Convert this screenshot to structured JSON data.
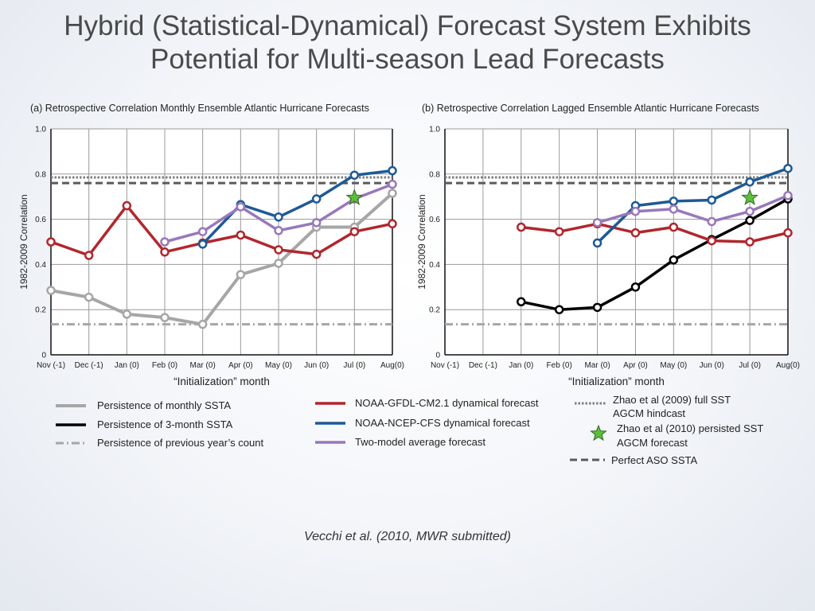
{
  "title": {
    "line1": "Hybrid (Statistical-Dynamical) Forecast System Exhibits",
    "line2": "Potential for Multi-season Lead Forecasts"
  },
  "citation": "Vecchi et al. (2010, MWR submitted)",
  "chart_data": [
    {
      "type": "line",
      "title": "(a) Retrospective Correlation Monthly Ensemble Atlantic Hurricane Forecasts",
      "xlabel": "“Initialization” month",
      "ylabel": "1982-2009  Correlation",
      "categories": [
        "Nov (-1)",
        "Dec (-1)",
        "Jan (0)",
        "Feb (0)",
        "Mar (0)",
        "Apr (0)",
        "May (0)",
        "Jun (0)",
        "Jul (0)",
        "Aug(0)"
      ],
      "ylim": [
        0,
        1.0
      ],
      "yticks": [
        "0",
        "0.2",
        "0.4",
        "0.6",
        "0.8",
        "1.0"
      ],
      "grid": true,
      "series": [
        {
          "key": "ssta_monthly",
          "values": [
            0.285,
            0.255,
            0.18,
            0.165,
            0.135,
            0.355,
            0.405,
            0.565,
            0.565,
            0.715
          ]
        },
        {
          "key": "gfdl",
          "values": [
            0.5,
            0.44,
            0.66,
            0.455,
            0.495,
            0.53,
            0.465,
            0.445,
            0.545,
            0.58
          ]
        },
        {
          "key": "ncep",
          "values": [
            null,
            null,
            null,
            null,
            0.49,
            0.665,
            0.61,
            0.69,
            0.795,
            0.815
          ]
        },
        {
          "key": "avg",
          "values": [
            null,
            null,
            null,
            0.5,
            0.545,
            0.655,
            0.55,
            0.585,
            0.69,
            0.755
          ]
        }
      ],
      "reference_lines": {
        "zhao2009": 0.785,
        "perfect_aso": 0.76,
        "prev_year": 0.135
      },
      "star": {
        "x": "Jul (0)",
        "y": 0.695
      }
    },
    {
      "type": "line",
      "title": "(b) Retrospective Correlation Lagged Ensemble Atlantic Hurricane Forecasts",
      "xlabel": "“Initialization” month",
      "ylabel": "1982-2009  Correlation",
      "categories": [
        "Nov (-1)",
        "Dec (-1)",
        "Jan (0)",
        "Feb (0)",
        "Mar (0)",
        "Apr (0)",
        "May (0)",
        "Jun (0)",
        "Jul (0)",
        "Aug(0)"
      ],
      "ylim": [
        0,
        1.0
      ],
      "yticks": [
        "0",
        "0.2",
        "0.4",
        "0.6",
        "0.8",
        "1.0"
      ],
      "grid": true,
      "series": [
        {
          "key": "ssta_3month",
          "values": [
            null,
            null,
            0.235,
            0.2,
            0.21,
            0.3,
            0.42,
            0.51,
            0.595,
            0.69
          ]
        },
        {
          "key": "gfdl",
          "values": [
            null,
            null,
            0.565,
            0.545,
            0.58,
            0.54,
            0.565,
            0.505,
            0.5,
            0.54
          ]
        },
        {
          "key": "ncep",
          "values": [
            null,
            null,
            null,
            null,
            0.495,
            0.66,
            0.68,
            0.685,
            0.765,
            0.825
          ]
        },
        {
          "key": "avg",
          "values": [
            null,
            null,
            null,
            null,
            0.585,
            0.635,
            0.645,
            0.59,
            0.635,
            0.705
          ]
        }
      ],
      "reference_lines": {
        "zhao2009": 0.785,
        "perfect_aso": 0.76,
        "prev_year": 0.135
      },
      "star": {
        "x": "Jul (0)",
        "y": 0.695
      }
    }
  ],
  "legend": {
    "ssta_monthly": "Persistence of monthly SSTA",
    "ssta_3month": "Persistence of 3-month SSTA",
    "prev_year": "Persistence of previous year’s count",
    "gfdl": "NOAA-GFDL-CM2.1 dynamical forecast",
    "ncep": "NOAA-NCEP-CFS dynamical forecast",
    "avg": "Two-model average forecast",
    "zhao2009_line1": "Zhao et al (2009) full SST",
    "zhao2009_line2": "AGCM hindcast",
    "zhao2010_line1": "Zhao et al (2010) persisted SST",
    "zhao2010_line2": "AGCM forecast",
    "perfect": "Perfect ASO SSTA"
  },
  "colors": {
    "ssta_monthly": "#a6a6a6",
    "ssta_3month": "#000000",
    "prev_year": "#a6a6a6",
    "gfdl": "#b0272d",
    "ncep": "#1d5a96",
    "avg": "#9878bb",
    "zhao2009": "#7f7f7f",
    "perfect": "#5a5a5a",
    "star_fill": "#5cbf3a",
    "star_stroke": "#2f6b1f"
  }
}
